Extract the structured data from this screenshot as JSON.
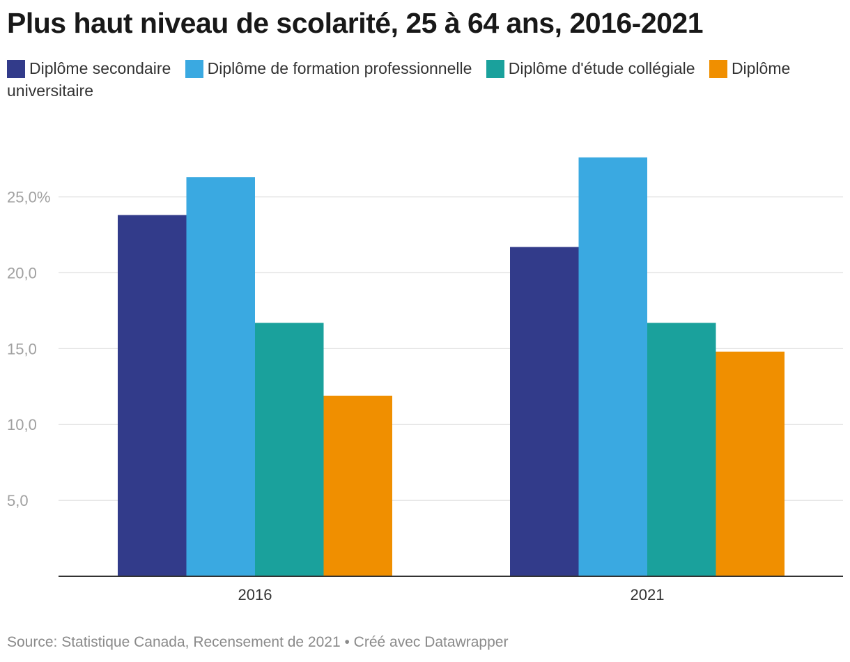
{
  "chart_data": {
    "type": "bar",
    "title": "Plus haut niveau de scolarité, 25 à 64 ans, 2016-2021",
    "categories": [
      "2016",
      "2021"
    ],
    "series": [
      {
        "name": "Diplôme secondaire",
        "color": "#323b8a",
        "values": [
          23.8,
          21.7
        ]
      },
      {
        "name": "Diplôme de formation professionnelle",
        "color": "#3aa9e1",
        "values": [
          26.3,
          27.6
        ]
      },
      {
        "name": "Diplôme d'étude collégiale",
        "color": "#1aa19c",
        "values": [
          16.7,
          16.7
        ]
      },
      {
        "name": "Diplôme universitaire",
        "color": "#f08f00",
        "values": [
          11.9,
          14.8
        ]
      }
    ],
    "yticks": [
      5,
      10,
      15,
      20,
      25
    ],
    "ytick_labels": [
      "5,0",
      "10,0",
      "15,0",
      "20,0",
      "25,0%"
    ],
    "ylim": [
      0,
      30
    ],
    "grid": true,
    "legend": "top",
    "xlabel": "",
    "ylabel": ""
  },
  "footer": "Source: Statistique Canada, Recensement de 2021 • Créé avec Datawrapper"
}
